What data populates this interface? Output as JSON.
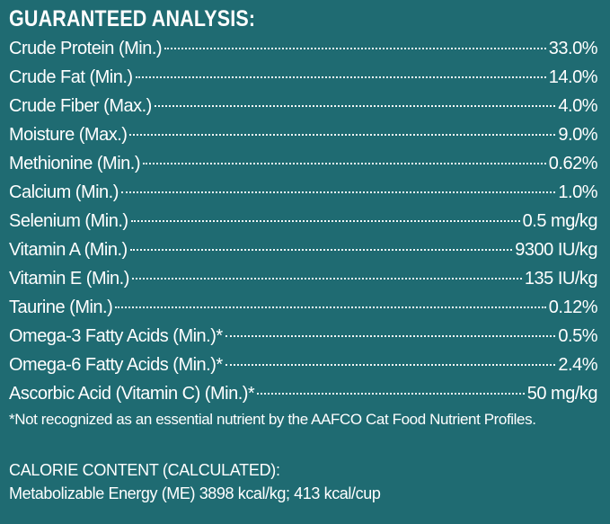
{
  "heading": "GUARANTEED ANALYSIS:",
  "rows": [
    {
      "label": "Crude Protein (Min.)",
      "value": "33.0%"
    },
    {
      "label": "Crude Fat (Min.)",
      "value": "14.0%"
    },
    {
      "label": "Crude Fiber (Max.)",
      "value": "4.0%"
    },
    {
      "label": "Moisture (Max.)",
      "value": "9.0%"
    },
    {
      "label": "Methionine (Min.)",
      "value": "0.62%"
    },
    {
      "label": "Calcium (Min.)",
      "value": "1.0%"
    },
    {
      "label": "Selenium (Min.)",
      "value": "0.5 mg/kg"
    },
    {
      "label": "Vitamin A (Min.)",
      "value": "9300 IU/kg"
    },
    {
      "label": "Vitamin E (Min.)",
      "value": "135 IU/kg"
    },
    {
      "label": "Taurine (Min.)",
      "value": "0.12%"
    },
    {
      "label": "Omega-3 Fatty Acids (Min.)*",
      "value": "0.5%"
    },
    {
      "label": "Omega-6 Fatty Acids (Min.)*",
      "value": "2.4%"
    },
    {
      "label": "Ascorbic Acid (Vitamin C) (Min.)*",
      "value": "50 mg/kg"
    }
  ],
  "footnote": "*Not recognized as an essential nutrient by the AAFCO Cat Food Nutrient Profiles.",
  "calorie": {
    "title": "CALORIE CONTENT (CALCULATED):",
    "text": "Metabolizable Energy (ME) 3898 kcal/kg;  413 kcal/cup"
  },
  "colors": {
    "background": "#1f6b72",
    "text": "#ffffff"
  }
}
